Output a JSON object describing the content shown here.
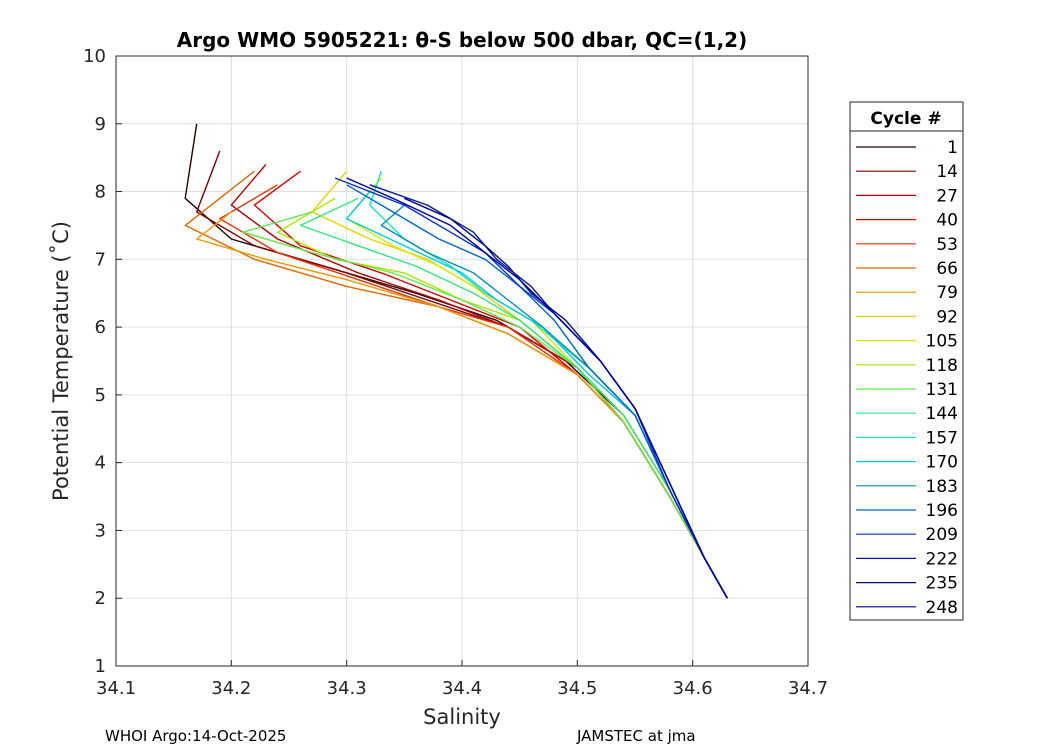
{
  "chart_data": {
    "type": "line",
    "title": "Argo WMO 5905221: θ-S below 500 dbar,  QC=(1,2)",
    "xlabel": "Salinity",
    "ylabel": "Potential Temperature (˚C)",
    "xlim": [
      34.1,
      34.7
    ],
    "ylim": [
      1,
      10
    ],
    "xticks": [
      "34.1",
      "34.2",
      "34.3",
      "34.4",
      "34.5",
      "34.6",
      "34.7"
    ],
    "yticks": [
      "1",
      "2",
      "3",
      "4",
      "5",
      "6",
      "7",
      "8",
      "9",
      "10"
    ],
    "grid": true,
    "legend": {
      "title": "Cycle #",
      "position": "right",
      "entries": [
        "1",
        "14",
        "27",
        "40",
        "53",
        "66",
        "79",
        "92",
        "105",
        "118",
        "131",
        "144",
        "157",
        "170",
        "183",
        "196",
        "209",
        "222",
        "235",
        "248"
      ],
      "colors": [
        "#2b0000",
        "#7f0000",
        "#b20000",
        "#d90000",
        "#e63300",
        "#e66600",
        "#e69900",
        "#e6d200",
        "#d9e600",
        "#a6e600",
        "#66e64d",
        "#33e680",
        "#1ae6c0",
        "#00ccdd",
        "#008fb3",
        "#0066cc",
        "#0033cc",
        "#001a99",
        "#000d80",
        "#0000a6"
      ]
    },
    "series": [
      {
        "name": "1",
        "salinity": [
          34.17,
          34.16,
          34.2,
          34.28,
          34.36,
          34.43,
          34.49,
          34.54,
          34.58,
          34.61,
          34.63
        ],
        "theta": [
          9.0,
          7.9,
          7.3,
          6.9,
          6.5,
          6.1,
          5.5,
          4.7,
          3.6,
          2.6,
          2.0
        ]
      },
      {
        "name": "14",
        "salinity": [
          34.19,
          34.17,
          34.22,
          34.3,
          34.37,
          34.44,
          34.5,
          34.54,
          34.58,
          34.61,
          34.63
        ],
        "theta": [
          8.6,
          7.7,
          7.2,
          6.8,
          6.4,
          6.0,
          5.4,
          4.6,
          3.5,
          2.6,
          2.0
        ]
      },
      {
        "name": "27",
        "salinity": [
          34.23,
          34.2,
          34.24,
          34.31,
          34.38,
          34.44,
          34.5,
          34.54,
          34.58,
          34.61,
          34.63
        ],
        "theta": [
          8.4,
          7.8,
          7.3,
          6.8,
          6.4,
          6.0,
          5.4,
          4.6,
          3.5,
          2.6,
          2.0
        ]
      },
      {
        "name": "40",
        "salinity": [
          34.26,
          34.22,
          34.26,
          34.33,
          34.39,
          34.45,
          34.5,
          34.54,
          34.58,
          34.61,
          34.63
        ],
        "theta": [
          8.3,
          7.8,
          7.2,
          6.8,
          6.4,
          6.0,
          5.3,
          4.6,
          3.5,
          2.6,
          2.0
        ]
      },
      {
        "name": "53",
        "salinity": [
          34.24,
          34.19,
          34.24,
          34.31,
          34.38,
          34.44,
          34.5,
          34.54,
          34.58,
          34.61,
          34.63
        ],
        "theta": [
          8.1,
          7.6,
          7.1,
          6.7,
          6.3,
          6.0,
          5.3,
          4.6,
          3.5,
          2.6,
          2.0
        ]
      },
      {
        "name": "66",
        "salinity": [
          34.22,
          34.16,
          34.22,
          34.3,
          34.38,
          34.44,
          34.5,
          34.54,
          34.58,
          34.61,
          34.63
        ],
        "theta": [
          8.3,
          7.5,
          7.0,
          6.6,
          6.3,
          5.9,
          5.3,
          4.6,
          3.5,
          2.6,
          2.0
        ]
      },
      {
        "name": "79",
        "salinity": [
          34.2,
          34.17,
          34.23,
          34.3,
          34.38,
          34.44,
          34.5,
          34.54,
          34.58,
          34.61,
          34.63
        ],
        "theta": [
          7.7,
          7.3,
          7.0,
          6.7,
          6.3,
          5.9,
          5.3,
          4.6,
          3.5,
          2.6,
          2.0
        ]
      },
      {
        "name": "92",
        "salinity": [
          34.3,
          34.27,
          34.32,
          34.37,
          34.41,
          34.45,
          34.5,
          34.54,
          34.58,
          34.61,
          34.63
        ],
        "theta": [
          8.3,
          7.7,
          7.3,
          7.0,
          6.6,
          6.1,
          5.4,
          4.7,
          3.6,
          2.6,
          2.0
        ]
      },
      {
        "name": "105",
        "salinity": [
          34.33,
          34.3,
          34.34,
          34.38,
          34.42,
          34.46,
          34.5,
          34.54,
          34.58,
          34.61,
          34.63
        ],
        "theta": [
          8.2,
          7.6,
          7.2,
          6.9,
          6.5,
          6.1,
          5.4,
          4.7,
          3.6,
          2.6,
          2.0
        ]
      },
      {
        "name": "118",
        "salinity": [
          34.29,
          34.24,
          34.29,
          34.35,
          34.4,
          34.45,
          34.5,
          34.54,
          34.58,
          34.61,
          34.63
        ],
        "theta": [
          7.9,
          7.4,
          7.0,
          6.8,
          6.4,
          6.1,
          5.4,
          4.7,
          3.6,
          2.6,
          2.0
        ]
      },
      {
        "name": "131",
        "salinity": [
          34.27,
          34.21,
          34.27,
          34.34,
          34.4,
          34.45,
          34.5,
          34.54,
          34.58,
          34.61,
          34.63
        ],
        "theta": [
          7.7,
          7.4,
          7.1,
          6.8,
          6.4,
          6.0,
          5.4,
          4.6,
          3.5,
          2.6,
          2.0
        ]
      },
      {
        "name": "144",
        "salinity": [
          34.31,
          34.26,
          34.31,
          34.36,
          34.41,
          34.45,
          34.5,
          34.54,
          34.58,
          34.61,
          34.63
        ],
        "theta": [
          7.9,
          7.5,
          7.2,
          6.9,
          6.5,
          6.1,
          5.4,
          4.7,
          3.6,
          2.6,
          2.0
        ]
      },
      {
        "name": "157",
        "salinity": [
          34.33,
          34.32,
          34.35,
          34.39,
          34.42,
          34.46,
          34.51,
          34.55,
          34.58,
          34.61,
          34.63
        ],
        "theta": [
          8.3,
          7.8,
          7.3,
          6.9,
          6.5,
          6.1,
          5.4,
          4.7,
          3.6,
          2.6,
          2.0
        ]
      },
      {
        "name": "170",
        "salinity": [
          34.32,
          34.3,
          34.35,
          34.4,
          34.43,
          34.47,
          34.51,
          34.55,
          34.58,
          34.61,
          34.63
        ],
        "theta": [
          8.0,
          7.6,
          7.2,
          6.8,
          6.4,
          6.0,
          5.3,
          4.7,
          3.6,
          2.6,
          2.0
        ]
      },
      {
        "name": "183",
        "salinity": [
          34.35,
          34.33,
          34.37,
          34.41,
          34.44,
          34.47,
          34.51,
          34.55,
          34.58,
          34.61,
          34.63
        ],
        "theta": [
          7.8,
          7.5,
          7.1,
          6.8,
          6.4,
          6.0,
          5.4,
          4.7,
          3.6,
          2.6,
          2.0
        ]
      },
      {
        "name": "196",
        "salinity": [
          34.3,
          34.34,
          34.38,
          34.42,
          34.45,
          34.48,
          34.51,
          34.55,
          34.58,
          34.61,
          34.63
        ],
        "theta": [
          8.1,
          7.7,
          7.3,
          7.0,
          6.6,
          6.1,
          5.4,
          4.7,
          3.6,
          2.6,
          2.0
        ]
      },
      {
        "name": "209",
        "salinity": [
          34.29,
          34.35,
          34.39,
          34.42,
          34.45,
          34.48,
          34.52,
          34.55,
          34.58,
          34.61,
          34.63
        ],
        "theta": [
          8.2,
          7.8,
          7.4,
          7.1,
          6.6,
          6.2,
          5.5,
          4.8,
          3.6,
          2.6,
          2.0
        ]
      },
      {
        "name": "222",
        "salinity": [
          34.32,
          34.37,
          34.41,
          34.43,
          34.46,
          34.48,
          34.52,
          34.55,
          34.58,
          34.61,
          34.63
        ],
        "theta": [
          8.1,
          7.8,
          7.4,
          7.0,
          6.6,
          6.2,
          5.5,
          4.8,
          3.7,
          2.6,
          2.0
        ]
      },
      {
        "name": "235",
        "salinity": [
          34.35,
          34.39,
          34.42,
          34.44,
          34.46,
          34.49,
          34.52,
          34.55,
          34.58,
          34.61,
          34.63
        ],
        "theta": [
          7.9,
          7.6,
          7.2,
          6.9,
          6.5,
          6.1,
          5.5,
          4.8,
          3.7,
          2.6,
          2.0
        ]
      },
      {
        "name": "248",
        "salinity": [
          34.3,
          34.34,
          34.39,
          34.42,
          34.45,
          34.48,
          34.52,
          34.55,
          34.58,
          34.61,
          34.63
        ],
        "theta": [
          8.2,
          7.9,
          7.5,
          7.1,
          6.7,
          6.2,
          5.5,
          4.8,
          3.7,
          2.6,
          2.0
        ]
      }
    ]
  },
  "footer": {
    "left": "WHOI Argo:14-Oct-2025",
    "right": "JAMSTEC at jma"
  }
}
